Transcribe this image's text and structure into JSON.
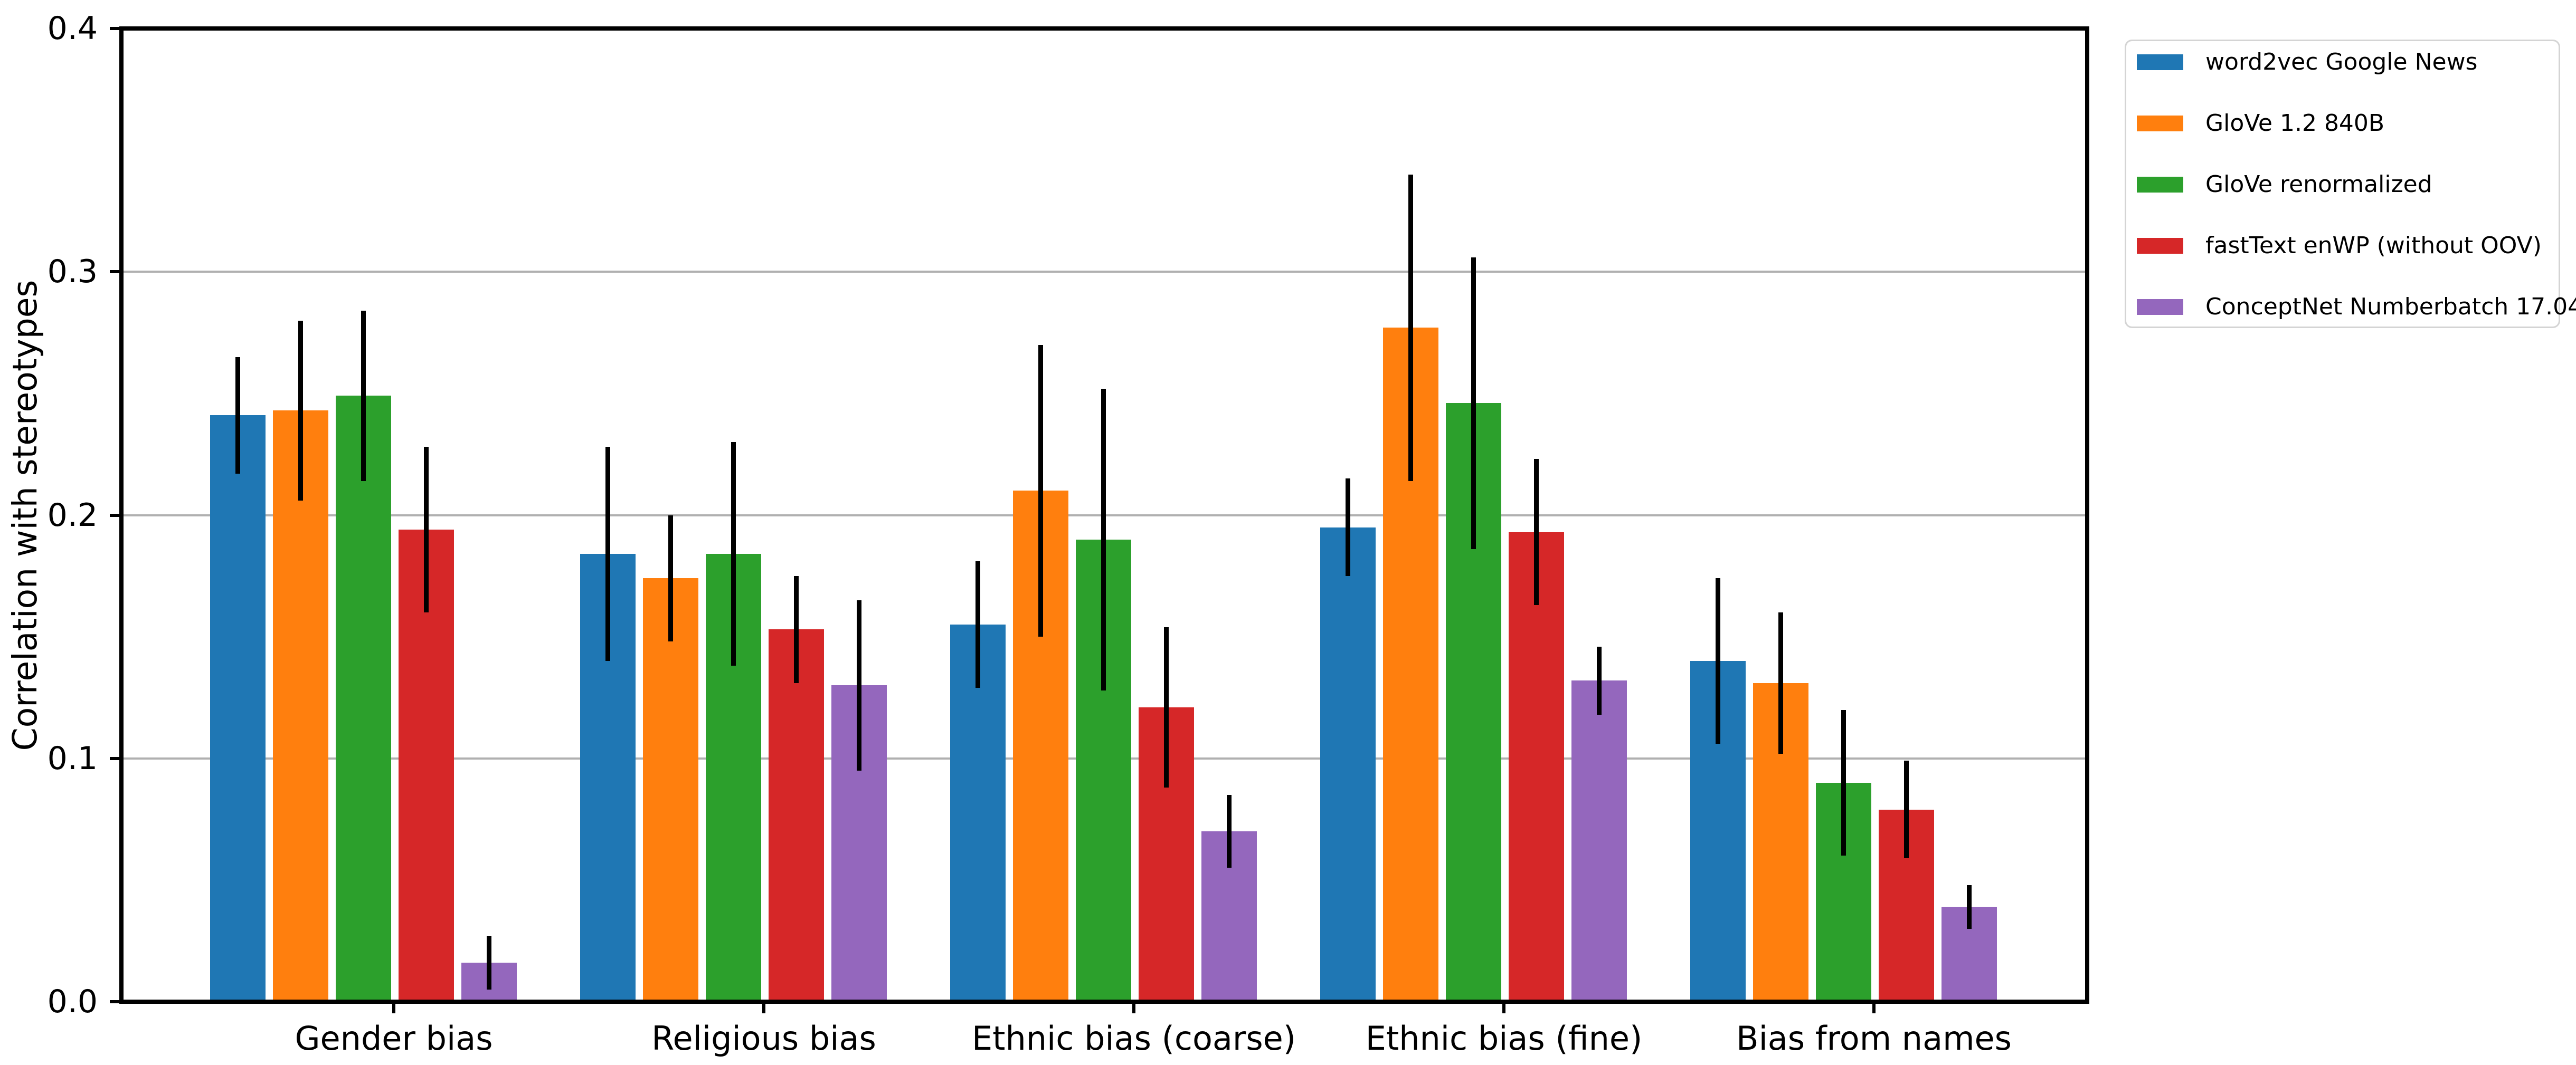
{
  "figure": {
    "background": "#ffffff",
    "text_color": "#000000"
  },
  "chart_data": {
    "type": "bar",
    "title": "",
    "xlabel": "",
    "ylabel": "Correlation with stereotypes",
    "ylim": [
      0.0,
      0.4
    ],
    "yticks": [
      0.0,
      0.1,
      0.2,
      0.3,
      0.4
    ],
    "ytick_labels": [
      "0.0",
      "0.1",
      "0.2",
      "0.3",
      "0.4"
    ],
    "grid": {
      "axis": "y",
      "values": [
        0.1,
        0.2,
        0.3
      ],
      "color": "#b0b0b0"
    },
    "categories": [
      "Gender bias",
      "Religious bias",
      "Ethnic bias (coarse)",
      "Ethnic bias (fine)",
      "Bias from names"
    ],
    "series": [
      {
        "name": "word2vec Google News",
        "color": "#1f77b4",
        "values": [
          0.241,
          0.184,
          0.155,
          0.195,
          0.14
        ],
        "errors": [
          0.024,
          0.044,
          0.026,
          0.02,
          0.034
        ]
      },
      {
        "name": "GloVe 1.2 840B",
        "color": "#ff7f0e",
        "values": [
          0.243,
          0.174,
          0.21,
          0.277,
          0.131
        ],
        "errors": [
          0.037,
          0.026,
          0.06,
          0.063,
          0.029
        ]
      },
      {
        "name": "GloVe renormalized",
        "color": "#2ca02c",
        "values": [
          0.249,
          0.184,
          0.19,
          0.246,
          0.09
        ],
        "errors": [
          0.035,
          0.046,
          0.062,
          0.06,
          0.03
        ]
      },
      {
        "name": "fastText enWP (without OOV)",
        "color": "#d62728",
        "values": [
          0.194,
          0.153,
          0.121,
          0.193,
          0.079
        ],
        "errors": [
          0.034,
          0.022,
          0.033,
          0.03,
          0.02
        ]
      },
      {
        "name": "ConceptNet Numberbatch 17.04",
        "color": "#9467bd",
        "values": [
          0.016,
          0.13,
          0.07,
          0.132,
          0.039
        ],
        "errors": [
          0.011,
          0.035,
          0.015,
          0.014,
          0.009
        ]
      }
    ],
    "error_bar_color": "#000000",
    "legend": {
      "position": "outside-upper-right",
      "border_color": "#d4d4d4",
      "background": "#ffffff"
    }
  }
}
